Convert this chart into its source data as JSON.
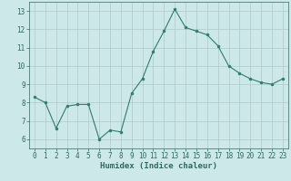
{
  "x": [
    0,
    1,
    2,
    3,
    4,
    5,
    6,
    7,
    8,
    9,
    10,
    11,
    12,
    13,
    14,
    15,
    16,
    17,
    18,
    19,
    20,
    21,
    22,
    23
  ],
  "y": [
    8.3,
    8.0,
    6.6,
    7.8,
    7.9,
    7.9,
    6.0,
    6.5,
    6.4,
    8.5,
    9.3,
    10.8,
    11.9,
    13.1,
    12.1,
    11.9,
    11.7,
    11.1,
    10.0,
    9.6,
    9.3,
    9.1,
    9.0,
    9.3
  ],
  "line_color": "#2e7d6e",
  "marker": "o",
  "marker_size": 2,
  "bg_color": "#cce8e8",
  "grid_color": "#b0c8c8",
  "xlabel": "Humidex (Indice chaleur)",
  "ylim": [
    5.5,
    13.5
  ],
  "xlim": [
    -0.5,
    23.5
  ],
  "yticks": [
    6,
    7,
    8,
    9,
    10,
    11,
    12,
    13
  ],
  "xticks": [
    0,
    1,
    2,
    3,
    4,
    5,
    6,
    7,
    8,
    9,
    10,
    11,
    12,
    13,
    14,
    15,
    16,
    17,
    18,
    19,
    20,
    21,
    22,
    23
  ],
  "tick_color": "#2e6b5e",
  "label_color": "#2e6b5e",
  "tick_fontsize": 5.5,
  "xlabel_fontsize": 6.5
}
